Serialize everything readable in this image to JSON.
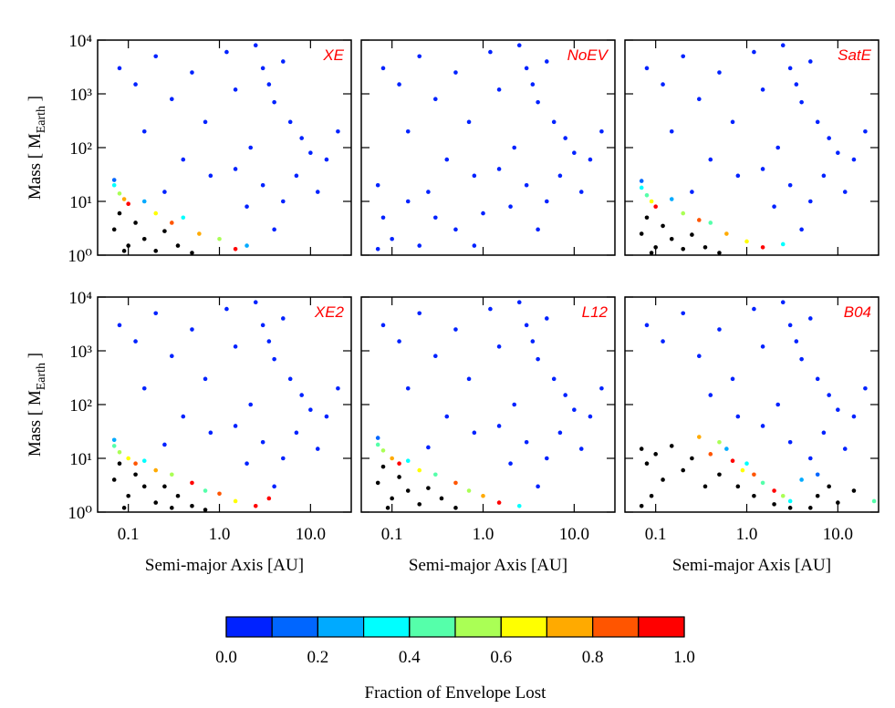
{
  "chart_data": [
    {
      "type": "scatter",
      "annotation": "XE",
      "annotation_color": "#ff0000",
      "log_x": true,
      "log_y": true,
      "xlim": [
        0.046,
        28
      ],
      "ylim": [
        1,
        10000
      ],
      "xtick_labels": false,
      "ytick_labels": true,
      "xticks": [
        0.1,
        1,
        10
      ],
      "yticks": [
        {
          "value": 1,
          "label": "10⁰"
        },
        {
          "value": 10,
          "label": "10¹"
        },
        {
          "value": 100,
          "label": "10²"
        },
        {
          "value": 1000,
          "label": "10³"
        },
        {
          "value": 10000,
          "label": "10⁴"
        }
      ],
      "ylabel": [
        "Mass  [ M",
        "Earth",
        " ]"
      ],
      "points": {
        "x": [
          0.08,
          0.12,
          0.2,
          0.3,
          0.5,
          0.7,
          1.2,
          1.5,
          2.5,
          3,
          3.5,
          4,
          5,
          6,
          8,
          10,
          15,
          20,
          2.2,
          1.5,
          0.8,
          0.4,
          0.15,
          3,
          5,
          2,
          4,
          7,
          12,
          0.25,
          0.07,
          0.07,
          0.08,
          0.09,
          0.1,
          0.15,
          0.2,
          0.3,
          0.4,
          0.6,
          1.0,
          1.5,
          2
        ],
        "y": [
          3000,
          1500,
          5000,
          800,
          2500,
          300,
          6000,
          1200,
          8000,
          3000,
          1500,
          700,
          4000,
          300,
          150,
          80,
          60,
          200,
          100,
          40,
          30,
          60,
          200,
          20,
          10,
          8,
          3,
          30,
          15,
          15,
          25,
          20,
          14,
          11,
          9,
          10,
          6,
          4,
          5,
          2.5,
          2.0,
          1.3,
          1.5
        ],
        "fraction": [
          0,
          0,
          0,
          0,
          0,
          0,
          0,
          0,
          0,
          0,
          0,
          0,
          0,
          0,
          0,
          0,
          0,
          0,
          0,
          0,
          0,
          0,
          0,
          0,
          0,
          0,
          0,
          0,
          0,
          0,
          0.1,
          0.3,
          0.5,
          0.7,
          0.9,
          0.2,
          0.6,
          0.8,
          0.3,
          0.7,
          0.5,
          0.9,
          0.2
        ]
      },
      "cores": {
        "color": "#000000",
        "x": [
          0.07,
          0.08,
          0.1,
          0.12,
          0.15,
          0.2,
          0.25,
          0.35,
          0.5,
          0.09
        ],
        "y": [
          3,
          6,
          1.5,
          4,
          2,
          1.2,
          2.8,
          1.5,
          1.1,
          1.2
        ]
      }
    },
    {
      "type": "scatter",
      "annotation": "NoEV",
      "annotation_color": "#ff0000",
      "log_x": true,
      "log_y": true,
      "xlim": [
        0.046,
        28
      ],
      "ylim": [
        1,
        10000
      ],
      "xtick_labels": false,
      "ytick_labels": false,
      "xticks": [
        0.1,
        1,
        10
      ],
      "yticks": [
        1,
        10,
        100,
        1000,
        10000
      ],
      "points": {
        "x": [
          0.08,
          0.12,
          0.2,
          0.3,
          0.5,
          0.7,
          1.2,
          1.5,
          2.5,
          3,
          3.5,
          4,
          5,
          6,
          8,
          10,
          15,
          20,
          2.2,
          1.5,
          0.8,
          0.4,
          0.15,
          3,
          5,
          2,
          4,
          7,
          12,
          0.25,
          0.07,
          0.08,
          0.1,
          0.15,
          0.2,
          0.3,
          0.5,
          0.8,
          1,
          0.07
        ],
        "y": [
          3000,
          1500,
          5000,
          800,
          2500,
          300,
          6000,
          1200,
          8000,
          3000,
          1500,
          700,
          4000,
          300,
          150,
          80,
          60,
          200,
          100,
          40,
          30,
          60,
          200,
          20,
          10,
          8,
          3,
          30,
          15,
          15,
          20,
          5,
          2,
          10,
          1.5,
          5,
          3,
          1.5,
          6,
          1.3
        ],
        "fraction": [
          0,
          0,
          0,
          0,
          0,
          0,
          0,
          0,
          0,
          0,
          0,
          0,
          0,
          0,
          0,
          0,
          0,
          0,
          0,
          0,
          0,
          0,
          0,
          0,
          0,
          0,
          0,
          0,
          0,
          0,
          0,
          0,
          0,
          0,
          0,
          0,
          0,
          0,
          0,
          0
        ]
      }
    },
    {
      "type": "scatter",
      "annotation": "SatE",
      "annotation_color": "#ff0000",
      "log_x": true,
      "log_y": true,
      "xlim": [
        0.046,
        28
      ],
      "ylim": [
        1,
        10000
      ],
      "xtick_labels": false,
      "ytick_labels": false,
      "xticks": [
        0.1,
        1,
        10
      ],
      "yticks": [
        1,
        10,
        100,
        1000,
        10000
      ],
      "points": {
        "x": [
          0.08,
          0.12,
          0.2,
          0.3,
          0.5,
          0.7,
          1.2,
          1.5,
          2.5,
          3,
          3.5,
          4,
          5,
          6,
          8,
          10,
          15,
          20,
          2.2,
          1.5,
          0.8,
          0.4,
          0.15,
          3,
          5,
          2,
          4,
          7,
          12,
          0.25,
          0.07,
          0.07,
          0.08,
          0.09,
          0.1,
          0.15,
          0.2,
          0.3,
          0.4,
          0.6,
          1.0,
          1.5,
          2.5
        ],
        "y": [
          3000,
          1500,
          5000,
          800,
          2500,
          300,
          6000,
          1200,
          8000,
          3000,
          1500,
          700,
          4000,
          300,
          150,
          80,
          60,
          200,
          100,
          40,
          30,
          60,
          200,
          20,
          10,
          8,
          3,
          30,
          15,
          15,
          24,
          18,
          13,
          10,
          8,
          11,
          6,
          4.5,
          4,
          2.5,
          1.8,
          1.4,
          1.6
        ],
        "fraction": [
          0,
          0,
          0,
          0,
          0,
          0,
          0,
          0,
          0,
          0,
          0,
          0,
          0,
          0,
          0,
          0,
          0,
          0,
          0,
          0,
          0,
          0,
          0,
          0,
          0,
          0,
          0,
          0,
          0,
          0,
          0.1,
          0.3,
          0.4,
          0.6,
          0.9,
          0.2,
          0.5,
          0.8,
          0.4,
          0.7,
          0.6,
          0.9,
          0.3
        ]
      },
      "cores": {
        "color": "#000000",
        "x": [
          0.07,
          0.08,
          0.1,
          0.12,
          0.15,
          0.2,
          0.25,
          0.35,
          0.5,
          0.09
        ],
        "y": [
          2.5,
          5,
          1.4,
          3.5,
          2,
          1.3,
          2.4,
          1.4,
          1.1,
          1.1
        ]
      }
    },
    {
      "type": "scatter",
      "annotation": "XE2",
      "annotation_color": "#ff0000",
      "log_x": true,
      "log_y": true,
      "xlim": [
        0.046,
        28
      ],
      "ylim": [
        1,
        10000
      ],
      "xtick_labels": true,
      "ytick_labels": true,
      "xticks": [
        0.1,
        {
          "value": 1,
          "label": "1.0"
        },
        {
          "value": 10,
          "label": "10.0"
        }
      ],
      "yticks": [
        {
          "value": 1,
          "label": "10⁰"
        },
        {
          "value": 10,
          "label": "10¹"
        },
        {
          "value": 100,
          "label": "10²"
        },
        {
          "value": 1000,
          "label": "10³"
        },
        {
          "value": 10000,
          "label": "10⁴"
        }
      ],
      "xlabel": "Semi-major Axis  [AU]",
      "ylabel": [
        "Mass  [ M",
        "Earth",
        " ]"
      ],
      "points": {
        "x": [
          0.08,
          0.12,
          0.2,
          0.3,
          0.5,
          0.7,
          1.2,
          1.5,
          2.5,
          3,
          3.5,
          4,
          5,
          6,
          8,
          10,
          15,
          20,
          2.2,
          1.5,
          0.8,
          0.4,
          0.15,
          3,
          5,
          2,
          4,
          7,
          12,
          0.25,
          0.07,
          0.07,
          0.08,
          0.1,
          0.12,
          0.15,
          0.2,
          0.3,
          0.5,
          0.7,
          1.0,
          1.5,
          2.5,
          3.5
        ],
        "y": [
          3000,
          1500,
          5000,
          800,
          2500,
          300,
          6000,
          1200,
          8000,
          3000,
          1500,
          700,
          4000,
          300,
          150,
          80,
          60,
          200,
          100,
          40,
          30,
          60,
          200,
          20,
          10,
          8,
          3,
          30,
          15,
          18,
          22,
          17,
          13,
          10,
          8,
          9,
          6,
          5,
          3.5,
          2.5,
          2.2,
          1.6,
          1.3,
          1.8
        ],
        "fraction": [
          0,
          0,
          0,
          0,
          0,
          0,
          0,
          0,
          0,
          0,
          0,
          0,
          0,
          0,
          0,
          0,
          0,
          0,
          0,
          0,
          0,
          0,
          0,
          0,
          0,
          0,
          0,
          0,
          0,
          0,
          0.2,
          0.4,
          0.5,
          0.6,
          0.8,
          0.3,
          0.7,
          0.5,
          0.9,
          0.4,
          0.8,
          0.6,
          0.9,
          0.95
        ]
      },
      "cores": {
        "color": "#000000",
        "x": [
          0.07,
          0.08,
          0.1,
          0.12,
          0.15,
          0.2,
          0.25,
          0.35,
          0.5,
          0.09,
          0.7,
          0.3
        ],
        "y": [
          4,
          8,
          2,
          5,
          3,
          1.5,
          3,
          2,
          1.3,
          1.2,
          1.1,
          1.2
        ]
      }
    },
    {
      "type": "scatter",
      "annotation": "L12",
      "annotation_color": "#ff0000",
      "log_x": true,
      "log_y": true,
      "xlim": [
        0.046,
        28
      ],
      "ylim": [
        1,
        10000
      ],
      "xtick_labels": true,
      "ytick_labels": false,
      "xticks": [
        0.1,
        {
          "value": 1,
          "label": "1.0"
        },
        {
          "value": 10,
          "label": "10.0"
        }
      ],
      "yticks": [
        1,
        10,
        100,
        1000,
        10000
      ],
      "xlabel": "Semi-major Axis  [AU]",
      "points": {
        "x": [
          0.08,
          0.12,
          0.2,
          0.3,
          0.5,
          0.7,
          1.2,
          1.5,
          2.5,
          3,
          3.5,
          4,
          5,
          6,
          8,
          10,
          15,
          20,
          2.2,
          1.5,
          0.8,
          0.4,
          0.15,
          3,
          5,
          2,
          4,
          7,
          12,
          0.25,
          0.07,
          0.07,
          0.08,
          0.1,
          0.12,
          0.15,
          0.2,
          0.3,
          0.5,
          0.7,
          1.0,
          1.5,
          2.5
        ],
        "y": [
          3000,
          1500,
          5000,
          800,
          2500,
          300,
          6000,
          1200,
          8000,
          3000,
          1500,
          700,
          4000,
          300,
          150,
          80,
          60,
          200,
          100,
          40,
          30,
          60,
          200,
          20,
          10,
          8,
          3,
          30,
          15,
          16,
          24,
          18,
          14,
          10,
          8,
          9,
          6,
          5,
          3.5,
          2.5,
          2.0,
          1.5,
          1.3
        ],
        "fraction": [
          0,
          0,
          0,
          0,
          0,
          0,
          0,
          0,
          0,
          0,
          0,
          0,
          0,
          0,
          0,
          0,
          0,
          0,
          0,
          0,
          0,
          0,
          0,
          0,
          0,
          0,
          0,
          0,
          0,
          0,
          0.1,
          0.4,
          0.5,
          0.7,
          0.9,
          0.3,
          0.6,
          0.4,
          0.8,
          0.5,
          0.7,
          0.9,
          0.3
        ]
      },
      "cores": {
        "color": "#000000",
        "x": [
          0.07,
          0.08,
          0.1,
          0.12,
          0.15,
          0.2,
          0.25,
          0.35,
          0.5,
          0.09
        ],
        "y": [
          3.5,
          7,
          1.8,
          4.5,
          2.5,
          1.4,
          2.8,
          1.8,
          1.2,
          1.2
        ]
      }
    },
    {
      "type": "scatter",
      "annotation": "B04",
      "annotation_color": "#ff0000",
      "log_x": true,
      "log_y": true,
      "xlim": [
        0.046,
        28
      ],
      "ylim": [
        1,
        10000
      ],
      "xtick_labels": true,
      "ytick_labels": false,
      "xticks": [
        0.1,
        {
          "value": 1,
          "label": "1.0"
        },
        {
          "value": 10,
          "label": "10.0"
        }
      ],
      "yticks": [
        1,
        10,
        100,
        1000,
        10000
      ],
      "xlabel": "Semi-major Axis  [AU]",
      "points": {
        "x": [
          0.08,
          0.12,
          0.2,
          0.3,
          0.5,
          0.7,
          1.2,
          1.5,
          2.5,
          3,
          3.5,
          4,
          5,
          6,
          8,
          10,
          15,
          20,
          2.2,
          1.5,
          0.8,
          0.4,
          3,
          5,
          7,
          12,
          0.3,
          0.4,
          0.5,
          0.7,
          0.9,
          1.2,
          1.5,
          2,
          2.5,
          3,
          0.6,
          1.0,
          4,
          6,
          25
        ],
        "y": [
          3000,
          1500,
          5000,
          800,
          2500,
          300,
          6000,
          1200,
          8000,
          3000,
          1500,
          700,
          4000,
          300,
          150,
          80,
          60,
          200,
          100,
          40,
          60,
          150,
          20,
          10,
          30,
          15,
          25,
          12,
          20,
          9,
          6,
          5,
          3.5,
          2.5,
          2,
          1.6,
          15,
          8,
          4,
          5,
          1.6
        ],
        "fraction": [
          0,
          0,
          0,
          0,
          0,
          0,
          0,
          0,
          0,
          0,
          0,
          0,
          0,
          0,
          0,
          0,
          0,
          0,
          0,
          0,
          0,
          0,
          0,
          0,
          0,
          0,
          0.7,
          0.8,
          0.5,
          0.9,
          0.6,
          0.8,
          0.4,
          0.9,
          0.5,
          0.3,
          0.2,
          0.3,
          0.2,
          0.1,
          0.4
        ]
      },
      "cores": {
        "color": "#000000",
        "x": [
          0.07,
          0.08,
          0.1,
          0.12,
          0.15,
          0.2,
          0.25,
          0.35,
          0.5,
          0.8,
          1.2,
          2,
          3,
          0.09,
          0.07,
          6,
          8,
          10,
          15,
          5
        ],
        "y": [
          15,
          8,
          12,
          4,
          17,
          6,
          10,
          3,
          5,
          3,
          2,
          1.4,
          1.2,
          2,
          1.3,
          2,
          3,
          1.5,
          2.5,
          1.2
        ]
      }
    },
    {
      "type": "colorbar",
      "title": "Fraction of Envelope Lost",
      "xlim": [
        0,
        1
      ],
      "colors": [
        "#0022ff",
        "#0066ff",
        "#00aaff",
        "#00ffff",
        "#55ffaa",
        "#aaff55",
        "#ffff00",
        "#ffaa00",
        "#ff5500",
        "#ff0000"
      ],
      "xticks": [
        {
          "value": 0,
          "label": "0.0"
        },
        {
          "value": 0.2,
          "label": "0.2"
        },
        {
          "value": 0.4,
          "label": "0.4"
        },
        {
          "value": 0.6,
          "label": "0.6"
        },
        {
          "value": 0.8,
          "label": "0.8"
        },
        {
          "value": 1,
          "label": "1.0"
        }
      ]
    }
  ]
}
